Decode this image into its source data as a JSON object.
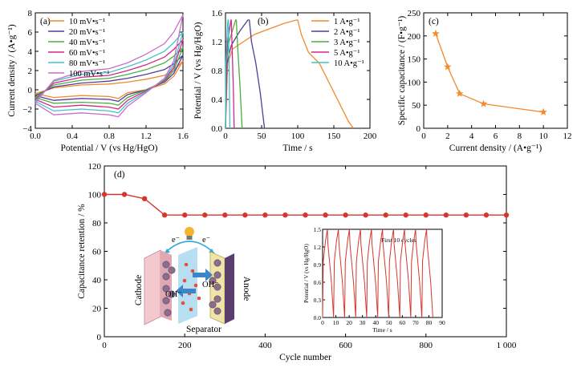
{
  "chart_data": [
    {
      "panel": "(a)",
      "type": "line",
      "xlabel": "Potential / V (vs Hg/HgO)",
      "ylabel": "Current density / (A•g⁻¹)",
      "xlim": [
        0.0,
        1.6
      ],
      "ylim": [
        -4,
        8
      ],
      "xticks": [
        "0.0",
        "0.4",
        "0.8",
        "1.2",
        "1.6"
      ],
      "yticks": [
        "−4",
        "−2",
        "0",
        "2",
        "4",
        "6",
        "8"
      ],
      "legend": "top-left",
      "series": [
        {
          "name": "10 mV•s⁻¹",
          "color": "#f28a2e",
          "upper": [
            [
              0,
              -0.4
            ],
            [
              0.2,
              0.2
            ],
            [
              0.5,
              0.5
            ],
            [
              0.8,
              0.6
            ],
            [
              1.0,
              0.8
            ],
            [
              1.2,
              1.1
            ],
            [
              1.4,
              1.5
            ],
            [
              1.5,
              2.0
            ],
            [
              1.6,
              3.0
            ]
          ],
          "lower": [
            [
              1.6,
              3.0
            ],
            [
              1.5,
              1.4
            ],
            [
              1.4,
              0.6
            ],
            [
              1.2,
              0.0
            ],
            [
              1.0,
              -0.3
            ],
            [
              0.9,
              -0.9
            ],
            [
              0.8,
              -0.7
            ],
            [
              0.5,
              -0.6
            ],
            [
              0.2,
              -0.8
            ],
            [
              0,
              -0.4
            ]
          ]
        },
        {
          "name": "20 mV•s⁻¹",
          "color": "#4e3f9c",
          "upper": [
            [
              0,
              -0.6
            ],
            [
              0.2,
              0.3
            ],
            [
              0.5,
              0.7
            ],
            [
              0.8,
              0.9
            ],
            [
              1.0,
              1.2
            ],
            [
              1.2,
              1.6
            ],
            [
              1.4,
              2.1
            ],
            [
              1.5,
              2.7
            ],
            [
              1.6,
              3.6
            ]
          ],
          "lower": [
            [
              1.6,
              3.6
            ],
            [
              1.5,
              1.7
            ],
            [
              1.4,
              0.8
            ],
            [
              1.2,
              0.0
            ],
            [
              1.0,
              -0.5
            ],
            [
              0.9,
              -1.2
            ],
            [
              0.8,
              -1.0
            ],
            [
              0.5,
              -0.9
            ],
            [
              0.2,
              -1.1
            ],
            [
              0,
              -0.6
            ]
          ]
        },
        {
          "name": "40 mV•s⁻¹",
          "color": "#4caf3e",
          "upper": [
            [
              0,
              -0.8
            ],
            [
              0.2,
              0.5
            ],
            [
              0.5,
              1.0
            ],
            [
              0.8,
              1.2
            ],
            [
              1.0,
              1.6
            ],
            [
              1.2,
              2.1
            ],
            [
              1.4,
              2.8
            ],
            [
              1.5,
              3.5
            ],
            [
              1.6,
              4.4
            ]
          ],
          "lower": [
            [
              1.6,
              4.4
            ],
            [
              1.5,
              2.0
            ],
            [
              1.4,
              0.9
            ],
            [
              1.2,
              0.0
            ],
            [
              1.0,
              -0.8
            ],
            [
              0.9,
              -1.6
            ],
            [
              0.8,
              -1.4
            ],
            [
              0.5,
              -1.3
            ],
            [
              0.2,
              -1.4
            ],
            [
              0,
              -0.8
            ]
          ]
        },
        {
          "name": "60 mV•s⁻¹",
          "color": "#d6248a",
          "upper": [
            [
              0,
              -1.0
            ],
            [
              0.2,
              0.7
            ],
            [
              0.5,
              1.3
            ],
            [
              0.8,
              1.5
            ],
            [
              1.0,
              2.0
            ],
            [
              1.2,
              2.6
            ],
            [
              1.4,
              3.4
            ],
            [
              1.5,
              4.2
            ],
            [
              1.6,
              5.2
            ]
          ],
          "lower": [
            [
              1.6,
              5.2
            ],
            [
              1.5,
              2.3
            ],
            [
              1.4,
              1.0
            ],
            [
              1.2,
              -0.1
            ],
            [
              1.0,
              -1.1
            ],
            [
              0.9,
              -2.0
            ],
            [
              0.8,
              -1.8
            ],
            [
              0.5,
              -1.6
            ],
            [
              0.2,
              -1.8
            ],
            [
              0,
              -1.0
            ]
          ]
        },
        {
          "name": "80 mV•s⁻¹",
          "color": "#3fc3c8",
          "upper": [
            [
              0,
              -1.2
            ],
            [
              0.2,
              0.9
            ],
            [
              0.5,
              1.6
            ],
            [
              0.8,
              1.8
            ],
            [
              1.0,
              2.4
            ],
            [
              1.2,
              3.1
            ],
            [
              1.4,
              4.0
            ],
            [
              1.5,
              4.9
            ],
            [
              1.6,
              6.0
            ]
          ],
          "lower": [
            [
              1.6,
              6.0
            ],
            [
              1.5,
              2.6
            ],
            [
              1.4,
              1.1
            ],
            [
              1.2,
              -0.2
            ],
            [
              1.0,
              -1.4
            ],
            [
              0.9,
              -2.4
            ],
            [
              0.8,
              -2.2
            ],
            [
              0.5,
              -2.0
            ],
            [
              0.2,
              -2.2
            ],
            [
              0,
              -1.2
            ]
          ]
        },
        {
          "name": "100 mV•s⁻¹",
          "color": "#c86fc9",
          "upper": [
            [
              0,
              -1.4
            ],
            [
              0.2,
              1.0
            ],
            [
              0.5,
              1.9
            ],
            [
              0.8,
              2.2
            ],
            [
              1.0,
              2.8
            ],
            [
              1.2,
              3.7
            ],
            [
              1.4,
              4.8
            ],
            [
              1.5,
              6.0
            ],
            [
              1.6,
              7.8
            ]
          ],
          "lower": [
            [
              1.6,
              7.8
            ],
            [
              1.5,
              3.0
            ],
            [
              1.4,
              1.2
            ],
            [
              1.2,
              -0.3
            ],
            [
              1.0,
              -1.7
            ],
            [
              0.9,
              -2.8
            ],
            [
              0.8,
              -2.6
            ],
            [
              0.5,
              -2.4
            ],
            [
              0.2,
              -2.6
            ],
            [
              0,
              -1.4
            ]
          ]
        }
      ]
    },
    {
      "panel": "(b)",
      "type": "line",
      "xlabel": "Time / s",
      "ylabel": "Potential / V (vs Hg/HgO)",
      "xlim": [
        0,
        200
      ],
      "ylim": [
        0,
        1.6
      ],
      "xticks": [
        "0",
        "50",
        "100",
        "150",
        "200"
      ],
      "yticks": [
        "0.0",
        "0.4",
        "0.8",
        "1.2",
        "1.6"
      ],
      "legend": "top-right",
      "series": [
        {
          "name": "1 A•g⁻¹",
          "color": "#f28a2e",
          "points": [
            [
              0,
              0
            ],
            [
              3,
              0.9
            ],
            [
              10,
              1.1
            ],
            [
              40,
              1.3
            ],
            [
              80,
              1.45
            ],
            [
              98,
              1.5
            ],
            [
              100,
              1.5
            ],
            [
              105,
              1.3
            ],
            [
              115,
              1.05
            ],
            [
              130,
              0.9
            ],
            [
              150,
              0.5
            ],
            [
              170,
              0.1
            ],
            [
              177,
              0
            ]
          ]
        },
        {
          "name": "2 A•g⁻¹",
          "color": "#4e3f9c",
          "points": [
            [
              0,
              0
            ],
            [
              2,
              0.9
            ],
            [
              8,
              1.15
            ],
            [
              20,
              1.35
            ],
            [
              31,
              1.5
            ],
            [
              33,
              1.5
            ],
            [
              36,
              1.2
            ],
            [
              42,
              0.9
            ],
            [
              48,
              0.5
            ],
            [
              54,
              0
            ]
          ]
        },
        {
          "name": "3 A•g⁻¹",
          "color": "#4caf3e",
          "points": [
            [
              0,
              0
            ],
            [
              1,
              0.9
            ],
            [
              5,
              1.2
            ],
            [
              11,
              1.4
            ],
            [
              14,
              1.5
            ],
            [
              15,
              1.5
            ],
            [
              17,
              1.1
            ],
            [
              20,
              0.6
            ],
            [
              23,
              0
            ]
          ]
        },
        {
          "name": "5 A•g⁻¹",
          "color": "#d6248a",
          "points": [
            [
              0,
              0
            ],
            [
              1,
              0.9
            ],
            [
              3,
              1.2
            ],
            [
              6,
              1.4
            ],
            [
              7.5,
              1.5
            ],
            [
              8,
              1.5
            ],
            [
              9.5,
              1.0
            ],
            [
              11,
              0.5
            ],
            [
              12,
              0
            ]
          ]
        },
        {
          "name": "10 A•g⁻¹",
          "color": "#3fc3c8",
          "points": [
            [
              0,
              0
            ],
            [
              0.5,
              0.9
            ],
            [
              2,
              1.25
            ],
            [
              3,
              1.45
            ],
            [
              3.5,
              1.5
            ],
            [
              4,
              1.5
            ],
            [
              5,
              0.9
            ],
            [
              6,
              0
            ]
          ]
        }
      ]
    },
    {
      "panel": "(c)",
      "type": "line",
      "xlabel": "Current density / (A•g⁻¹)",
      "ylabel": "Specific capacitance / (F•g⁻¹)",
      "xlim": [
        0,
        12
      ],
      "ylim": [
        0,
        250
      ],
      "xticks": [
        "0",
        "2",
        "4",
        "6",
        "8",
        "10",
        "12"
      ],
      "yticks": [
        "0",
        "50",
        "100",
        "150",
        "200",
        "250"
      ],
      "series": [
        {
          "color": "#f28a2e",
          "x": [
            1,
            2,
            3,
            5,
            10
          ],
          "values": [
            205,
            133,
            75,
            53,
            35
          ]
        }
      ]
    },
    {
      "panel": "(d)",
      "type": "line",
      "xlabel": "Cycle number",
      "ylabel": "Capacitance retention / %",
      "xlim": [
        0,
        1000
      ],
      "ylim": [
        0,
        120
      ],
      "xticks": [
        "0",
        "200",
        "400",
        "600",
        "800",
        "1 000"
      ],
      "yticks": [
        "0",
        "20",
        "40",
        "60",
        "80",
        "100",
        "120"
      ],
      "series": [
        {
          "color": "#d9352c",
          "x": [
            0,
            50,
            100,
            150,
            200,
            250,
            300,
            350,
            400,
            450,
            500,
            550,
            600,
            650,
            700,
            750,
            800,
            850,
            900,
            950,
            1000
          ],
          "values": [
            100,
            100,
            97,
            85.5,
            85.5,
            85.5,
            85.5,
            85.5,
            85.5,
            85.5,
            85.5,
            85.5,
            85.5,
            85.5,
            85.5,
            85.5,
            85.5,
            85.5,
            85.5,
            85.5,
            85.5
          ]
        }
      ],
      "inset": {
        "xlabel": "Time / s",
        "ylabel": "Potential / V (vs Hg/HgO)",
        "annotation": "First 10 cycles",
        "xlim": [
          0,
          90
        ],
        "ylim": [
          0,
          1.5
        ],
        "xticks": [
          "0",
          "10",
          "20",
          "30",
          "40",
          "50",
          "60",
          "70",
          "80",
          "90"
        ],
        "yticks": [
          "0.0",
          "0.3",
          "0.6",
          "0.9",
          "1.2",
          "1.5"
        ],
        "cycles": 10,
        "period_s": 8.3,
        "charge_s": 3.6,
        "vmax": 1.5
      },
      "schematic": {
        "labels": [
          "Cathode",
          "Separator",
          "Anode",
          "e⁻",
          "e⁻",
          "OH⁻",
          "OH⁻"
        ]
      }
    }
  ]
}
